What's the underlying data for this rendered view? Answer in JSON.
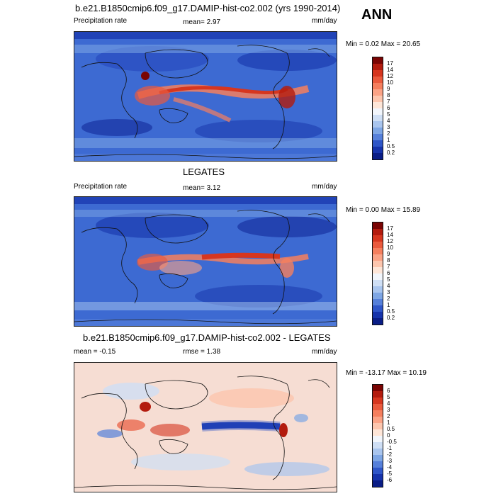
{
  "header": {
    "case_title": "b.e21.B1850cmip6.f09_g17.DAMIP-hist-co2.002 (yrs 1990-2014)",
    "season": "ANN"
  },
  "panels": [
    {
      "id": "model",
      "subtitle": "",
      "left_label": "Precipitation rate",
      "center_label": "mean=   2.97",
      "right_label": "mm/day",
      "minmax": "Min =   0.02 Max =  20.65",
      "stats": {
        "mean": 2.97,
        "min": 0.02,
        "max": 20.65
      },
      "colorbar": {
        "labels": [
          "17",
          "14",
          "12",
          "10",
          "9",
          "8",
          "7",
          "6",
          "5",
          "4",
          "3",
          "2",
          "1",
          "0.5",
          "0.2"
        ],
        "colors": [
          "#7a0403",
          "#b31b0e",
          "#d6361f",
          "#ea5a3d",
          "#f57f5e",
          "#fba386",
          "#fdc6ae",
          "#fee6d8",
          "#f2f6fc",
          "#cfdff5",
          "#a9c5ee",
          "#7ea6e4",
          "#5680da",
          "#2f56c8",
          "#1633ab",
          "#0a1d86"
        ]
      }
    },
    {
      "id": "obs",
      "subtitle": "LEGATES",
      "left_label": "Precipitation rate",
      "center_label": "mean=   3.12",
      "right_label": "mm/day",
      "minmax": "Min =   0.00 Max =  15.89",
      "stats": {
        "mean": 3.12,
        "min": 0.0,
        "max": 15.89
      },
      "colorbar": {
        "labels": [
          "17",
          "14",
          "12",
          "10",
          "9",
          "8",
          "7",
          "6",
          "5",
          "4",
          "3",
          "2",
          "1",
          "0.5",
          "0.2"
        ],
        "colors": [
          "#7a0403",
          "#b31b0e",
          "#d6361f",
          "#ea5a3d",
          "#f57f5e",
          "#fba386",
          "#fdc6ae",
          "#fee6d8",
          "#f2f6fc",
          "#cfdff5",
          "#a9c5ee",
          "#7ea6e4",
          "#5680da",
          "#2f56c8",
          "#1633ab",
          "#0a1d86"
        ]
      }
    },
    {
      "id": "diff",
      "subtitle": "b.e21.B1850cmip6.f09_g17.DAMIP-hist-co2.002 - LEGATES",
      "left_label": "mean =  -0.15",
      "center_label": "rmse =   1.38",
      "right_label": "mm/day",
      "minmax": "Min = -13.17 Max =  10.19",
      "stats": {
        "mean": -0.15,
        "rmse": 1.38,
        "min": -13.17,
        "max": 10.19
      },
      "colorbar": {
        "labels": [
          "6",
          "5",
          "4",
          "3",
          "2",
          "1",
          "0.5",
          "0",
          "-0.5",
          "-1",
          "-2",
          "-3",
          "-4",
          "-5",
          "-6"
        ],
        "colors": [
          "#7a0403",
          "#b31b0e",
          "#d6361f",
          "#ea5a3d",
          "#f57f5e",
          "#fba386",
          "#fdc6ae",
          "#fee6d8",
          "#f2f6fc",
          "#cfdff5",
          "#a9c5ee",
          "#7ea6e4",
          "#5680da",
          "#2f56c8",
          "#1633ab",
          "#0a1d86"
        ]
      }
    }
  ],
  "colors": {
    "background_model": "#3d6ad2",
    "background_diff": "#f6ddd3",
    "coastline": "#111111"
  }
}
